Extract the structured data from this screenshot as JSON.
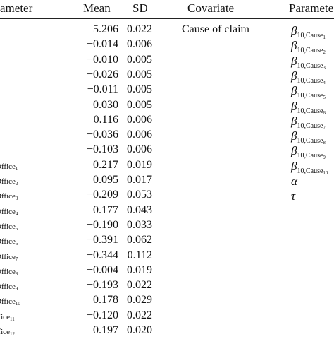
{
  "headers": {
    "param_left": "ameter",
    "mean": "Mean",
    "sd": "SD",
    "covariate": "Covariate",
    "param_right": "Paramete"
  },
  "left_rows": [
    {
      "param_prefix": "",
      "param_sub": "",
      "mean": "5.206",
      "sd": "0.022"
    },
    {
      "param_prefix": "",
      "param_sub": "",
      "mean": "−0.014",
      "sd": "0.006"
    },
    {
      "param_prefix": "",
      "param_sub": "",
      "mean": "−0.010",
      "sd": "0.005"
    },
    {
      "param_prefix": "",
      "param_sub": "",
      "mean": "−0.026",
      "sd": "0.005"
    },
    {
      "param_prefix": "",
      "param_sub": "",
      "mean": "−0.011",
      "sd": "0.005"
    },
    {
      "param_prefix": "",
      "param_sub": "",
      "mean": "0.030",
      "sd": "0.005"
    },
    {
      "param_prefix": "",
      "param_sub": "",
      "mean": "0.116",
      "sd": "0.006"
    },
    {
      "param_prefix": "",
      "param_sub": "",
      "mean": "−0.036",
      "sd": "0.006"
    },
    {
      "param_prefix": "",
      "param_sub": "",
      "mean": "−0.103",
      "sd": "0.006"
    },
    {
      "param_prefix": "Office",
      "param_sub": "1",
      "mean": "0.217",
      "sd": "0.019"
    },
    {
      "param_prefix": "Office",
      "param_sub": "2",
      "mean": "0.095",
      "sd": "0.017"
    },
    {
      "param_prefix": "Office",
      "param_sub": "3",
      "mean": "−0.209",
      "sd": "0.053"
    },
    {
      "param_prefix": "Office",
      "param_sub": "4",
      "mean": "0.177",
      "sd": "0.043"
    },
    {
      "param_prefix": "Office",
      "param_sub": "5",
      "mean": "−0.190",
      "sd": "0.033"
    },
    {
      "param_prefix": "Office",
      "param_sub": "6",
      "mean": "−0.391",
      "sd": "0.062"
    },
    {
      "param_prefix": "Office",
      "param_sub": "7",
      "mean": "−0.344",
      "sd": "0.112"
    },
    {
      "param_prefix": "Office",
      "param_sub": "8",
      "mean": "−0.004",
      "sd": "0.019"
    },
    {
      "param_prefix": "Office",
      "param_sub": "9",
      "mean": "−0.193",
      "sd": "0.022"
    },
    {
      "param_prefix": "Office",
      "param_sub": "10",
      "mean": "0.178",
      "sd": "0.029"
    },
    {
      "param_prefix": "ffice",
      "param_sub": "11",
      "mean": "−0.120",
      "sd": "0.022"
    },
    {
      "param_prefix": "ffice",
      "param_sub": "12",
      "mean": "0.197",
      "sd": "0.020"
    }
  ],
  "covariate_label": "Cause of claim",
  "right_rows": [
    {
      "symbol": "β",
      "sub": "10,Cause",
      "subsub": "1"
    },
    {
      "symbol": "β",
      "sub": "10,Cause",
      "subsub": "2"
    },
    {
      "symbol": "β",
      "sub": "10,Cause",
      "subsub": "3"
    },
    {
      "symbol": "β",
      "sub": "10,Cause",
      "subsub": "4"
    },
    {
      "symbol": "β",
      "sub": "10,Cause",
      "subsub": "5"
    },
    {
      "symbol": "β",
      "sub": "10,Cause",
      "subsub": "6"
    },
    {
      "symbol": "β",
      "sub": "10,Cause",
      "subsub": "7"
    },
    {
      "symbol": "β",
      "sub": "10,Cause",
      "subsub": "8"
    },
    {
      "symbol": "β",
      "sub": "10,Cause",
      "subsub": "9"
    },
    {
      "symbol": "β",
      "sub": "10,Cause",
      "subsub": "10"
    },
    {
      "symbol": "α",
      "sub": "",
      "subsub": ""
    },
    {
      "symbol": "τ",
      "sub": "",
      "subsub": ""
    }
  ]
}
